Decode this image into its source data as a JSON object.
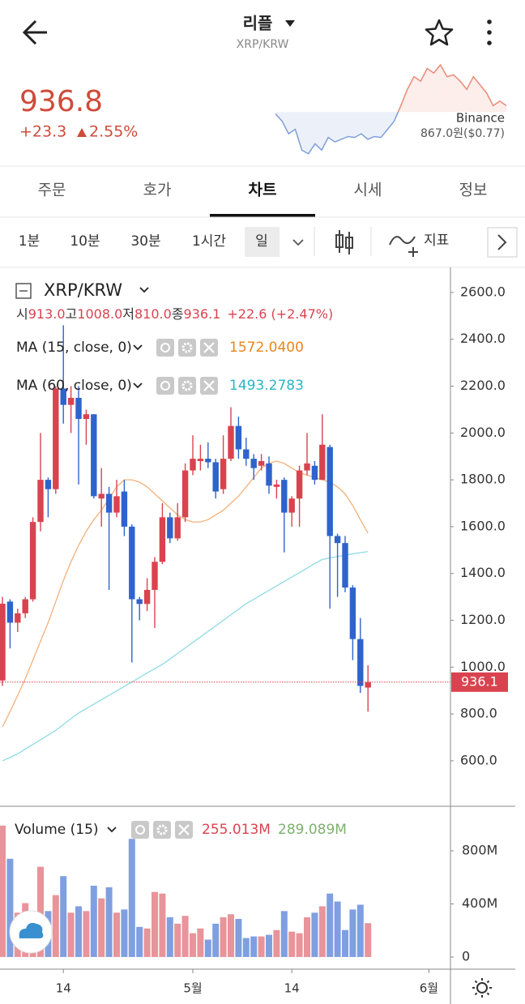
{
  "header": {
    "title": "리플",
    "subtitle": "XRP/KRW",
    "price": "936.8",
    "change": "+23.3",
    "change_pct": "2.55%",
    "exchange": "Binance",
    "exchange_price": "867.0원",
    "exchange_usd": "($0.77)"
  },
  "tabs": [
    "주문",
    "호가",
    "차트",
    "시세",
    "정보"
  ],
  "active_tab": 2,
  "intervals": [
    "1분",
    "10분",
    "30분",
    "1시간",
    "일"
  ],
  "active_interval": 4,
  "indicator_button": "지표",
  "sparkline": {
    "values": [
      46,
      38,
      24,
      29,
      6,
      2,
      13,
      6,
      20,
      15,
      18,
      21,
      20,
      24,
      18,
      21,
      20,
      29,
      38,
      55,
      73,
      87,
      82,
      96,
      91,
      100,
      87,
      89,
      82,
      73,
      87,
      78,
      69,
      55,
      60,
      55
    ],
    "baseline": 48,
    "ylim": [
      0,
      100
    ],
    "up_color": "#e98a78",
    "down_color": "#7f9fd8"
  },
  "chart_data": {
    "type": "candlestick",
    "symbol": "XRP/KRW",
    "ohlc_legend": [
      {
        "label": "시",
        "value": "913.0"
      },
      {
        "label": "고",
        "value": "1008.0"
      },
      {
        "label": "저",
        "value": "810.0"
      },
      {
        "label": "종",
        "value": "936.1"
      }
    ],
    "change_label": "+22.6 (+2.47%)",
    "open": [
      943,
      1280,
      1190,
      1230,
      1290,
      1620,
      1800,
      1760,
      2190,
      2120,
      2150,
      2060,
      2080,
      1720,
      1740,
      1660,
      1750,
      1600,
      1290,
      1270,
      1330,
      1450,
      1640,
      1550,
      1640,
      1840,
      1880,
      1890,
      1875,
      1760,
      1890,
      2030,
      1930,
      1890,
      1860,
      1870,
      1770,
      1800,
      1660,
      1720,
      1840,
      1860,
      1800,
      1940,
      1560,
      1530,
      1340,
      1120,
      913
    ],
    "high": [
      1300,
      1290,
      1250,
      1300,
      1640,
      2000,
      1810,
      2200,
      2460,
      2200,
      2200,
      2100,
      2080,
      1850,
      1770,
      1800,
      1800,
      1610,
      1300,
      1380,
      1470,
      1700,
      1660,
      1700,
      1870,
      1990,
      1950,
      1960,
      1890,
      1990,
      2110,
      2070,
      1980,
      1910,
      1910,
      1900,
      1800,
      1810,
      1730,
      1860,
      2000,
      1880,
      2080,
      1950,
      1570,
      1560,
      1350,
      1210,
      1008
    ],
    "low": [
      920,
      1080,
      1150,
      1210,
      1280,
      1580,
      1640,
      1740,
      2040,
      2000,
      1780,
      1950,
      1720,
      1600,
      1330,
      1640,
      1560,
      1020,
      1200,
      1240,
      1167,
      1440,
      1530,
      1540,
      1620,
      1820,
      1840,
      1850,
      1720,
      1740,
      1880,
      1890,
      1860,
      1800,
      1840,
      1740,
      1720,
      1490,
      1600,
      1600,
      1820,
      1780,
      1800,
      1250,
      1300,
      1320,
      1030,
      890,
      810
    ],
    "close": [
      1271,
      1190,
      1230,
      1290,
      1620,
      1800,
      1760,
      2190,
      2120,
      2150,
      2060,
      2080,
      1730,
      1740,
      1660,
      1730,
      1600,
      1290,
      1270,
      1330,
      1450,
      1640,
      1550,
      1640,
      1840,
      1890,
      1890,
      1875,
      1750,
      1890,
      2030,
      1930,
      1890,
      1850,
      1880,
      1775,
      1780,
      1660,
      1720,
      1840,
      1870,
      1800,
      1950,
      1560,
      1530,
      1340,
      1120,
      920,
      936.1
    ],
    "up_color": "#d9434f",
    "down_color": "#2f63cc",
    "ma": [
      {
        "name": "MA (15, close, 0)",
        "color": "#f2b07a",
        "label_color": "#e8861a",
        "value_label": "1572.0400",
        "values": [
          745,
          810,
          880,
          950,
          1030,
          1110,
          1190,
          1280,
          1370,
          1450,
          1520,
          1580,
          1630,
          1670,
          1720,
          1770,
          1800,
          1800,
          1790,
          1770,
          1740,
          1710,
          1680,
          1650,
          1630,
          1620,
          1620,
          1630,
          1650,
          1670,
          1700,
          1730,
          1770,
          1810,
          1850,
          1870,
          1880,
          1870,
          1850,
          1830,
          1820,
          1810,
          1800,
          1790,
          1770,
          1740,
          1690,
          1630,
          1572.04
        ]
      },
      {
        "name": "MA (60, close, 0)",
        "color": "#8fdbe4",
        "label_color": "#2bb5c8",
        "value_label": "1493.2783",
        "values": [
          600,
          615,
          630,
          650,
          670,
          690,
          710,
          730,
          755,
          780,
          804,
          823,
          842,
          861,
          880,
          899,
          918,
          937,
          956,
          975,
          994,
          1012,
          1035,
          1059,
          1082,
          1106,
          1129,
          1153,
          1176,
          1200,
          1224,
          1247,
          1271,
          1290,
          1309,
          1328,
          1347,
          1366,
          1385,
          1404,
          1423,
          1442,
          1460,
          1466,
          1472,
          1478,
          1484,
          1489,
          1493.2783
        ]
      }
    ],
    "xlim": [
      -0.32,
      58.83
    ],
    "xticks": [
      {
        "value": 8,
        "label": "14"
      },
      {
        "value": 25,
        "label": "5월"
      },
      {
        "value": 38,
        "label": "14"
      },
      {
        "value": 56,
        "label": "6월"
      }
    ],
    "ylim": [
      406,
      2707
    ],
    "yticks": [
      {
        "value": 600,
        "label": "600.0"
      },
      {
        "value": 800,
        "label": "800.0"
      },
      {
        "value": 1000,
        "label": "1000.0"
      },
      {
        "value": 1200,
        "label": "1200.0"
      },
      {
        "value": 1400,
        "label": "1400.0"
      },
      {
        "value": 1600,
        "label": "1600.0"
      },
      {
        "value": 1800,
        "label": "1800.0"
      },
      {
        "value": 2000,
        "label": "2000.0"
      },
      {
        "value": 2200,
        "label": "2200.0"
      },
      {
        "value": 2400,
        "label": "2400.0"
      },
      {
        "value": 2600,
        "label": "2600.0"
      }
    ]
  },
  "volume": {
    "name": "Volume (15)",
    "values": [
      990,
      740,
      334,
      406,
      334,
      680,
      346,
      466,
      609,
      334,
      382,
      346,
      537,
      442,
      525,
      334,
      358,
      890,
      227,
      215,
      490,
      478,
      299,
      251,
      310,
      179,
      215,
      131,
      251,
      299,
      322,
      287,
      143,
      155,
      155,
      167,
      203,
      346,
      191,
      179,
      299,
      334,
      382,
      478,
      418,
      203,
      358,
      394,
      255.013
    ],
    "value_label": "255.013M",
    "ma_label": "289.089M",
    "up_color": "#e8949a",
    "down_color": "#7f9fe0",
    "label_color": "#d9434f",
    "ma_label_color": "#7fb070",
    "ylim": [
      0,
      1105
    ],
    "yticks": [
      {
        "value": 0,
        "label": "0"
      },
      {
        "value": 400,
        "label": "400M"
      },
      {
        "value": 800,
        "label": "800M"
      }
    ]
  }
}
